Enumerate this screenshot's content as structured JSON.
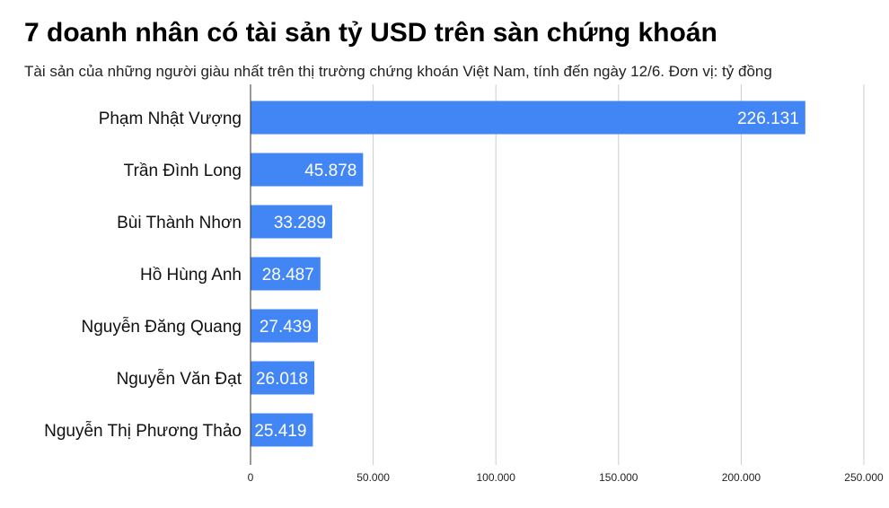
{
  "chart_data": {
    "type": "bar",
    "orientation": "horizontal",
    "title": "7 doanh nhân có tài sản tỷ USD trên sàn chứng khoán",
    "subtitle": "Tài sản của những người giàu nhất trên thị trường chứng khoán Việt Nam, tính đến ngày 12/6. Đơn vị: tỷ đồng",
    "categories": [
      "Phạm Nhật Vượng",
      "Trần Đình Long",
      "Bùi Thành Nhơn",
      "Hồ Hùng Anh",
      "Nguyễn Đăng Quang",
      "Nguyễn Văn Đạt",
      "Nguyễn Thị Phương Thảo"
    ],
    "values": [
      226131,
      45878,
      33289,
      28487,
      27439,
      26018,
      25419
    ],
    "value_labels": [
      "226.131",
      "45.878",
      "33.289",
      "28.487",
      "27.439",
      "26.018",
      "25.419"
    ],
    "xlim": [
      0,
      250000
    ],
    "ticks": [
      0,
      50000,
      100000,
      150000,
      200000,
      250000
    ],
    "tick_labels": [
      "0",
      "50.000",
      "100.000",
      "150.000",
      "200.000",
      "250.000"
    ],
    "grid": true,
    "legend": "none",
    "bar_color": "#4285f4",
    "grid_color": "#cccccc"
  }
}
